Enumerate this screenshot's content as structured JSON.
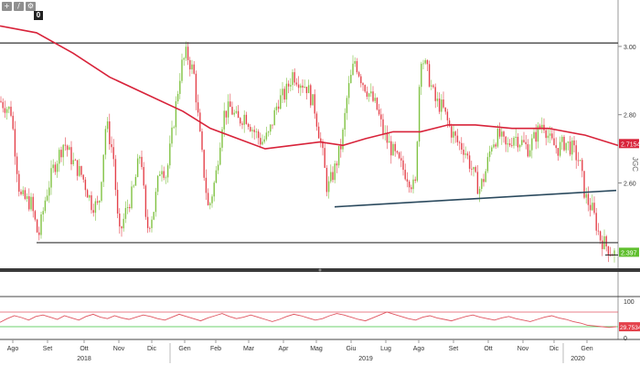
{
  "toolbar": {
    "buttons": [
      {
        "icon": "plus-icon",
        "glyph": "+"
      },
      {
        "icon": "pencil-icon",
        "glyph": "/"
      },
      {
        "icon": "gear-icon",
        "glyph": "⚙"
      }
    ],
    "badge": "0"
  },
  "colors": {
    "up": "#7fc241",
    "down": "#e4414b",
    "ma": "#d8233a",
    "support": "#333333",
    "trend": "#2b4a5e",
    "rsi": "#e05560",
    "rsi_upper": "#e05560",
    "rsi_lower": "#3cc23c",
    "last_price_bg": "#5fbf2d",
    "ma_label_bg": "#d8233a",
    "rsi_label_bg": "#e4414b"
  },
  "chart_data": [
    {
      "type": "candlestick",
      "y_axis_ticks": [
        "3.00",
        "2.80",
        "2.60"
      ],
      "ylim": [
        2.35,
        3.12
      ],
      "y_axis_label": "JGC",
      "x_month_labels": [
        "Ago",
        "Set",
        "Ott",
        "Nov",
        "Dic",
        "Gen",
        "Feb",
        "Mar",
        "Apr",
        "Mag",
        "Giu",
        "Lug",
        "Ago",
        "Set",
        "Ott",
        "Nov",
        "Dic",
        "Gen"
      ],
      "x_year_labels": [
        "2018",
        "2019",
        "2020"
      ],
      "series_path": [
        [
          0,
          2.84
        ],
        [
          12,
          2.81
        ],
        [
          22,
          2.56
        ],
        [
          34,
          2.54
        ],
        [
          42,
          2.44
        ],
        [
          50,
          2.56
        ],
        [
          58,
          2.64
        ],
        [
          70,
          2.72
        ],
        [
          80,
          2.66
        ],
        [
          90,
          2.62
        ],
        [
          100,
          2.54
        ],
        [
          108,
          2.53
        ],
        [
          116,
          2.78
        ],
        [
          124,
          2.68
        ],
        [
          130,
          2.44
        ],
        [
          138,
          2.52
        ],
        [
          146,
          2.58
        ],
        [
          154,
          2.7
        ],
        [
          160,
          2.46
        ],
        [
          168,
          2.52
        ],
        [
          176,
          2.66
        ],
        [
          182,
          2.62
        ],
        [
          190,
          2.78
        ],
        [
          198,
          2.94
        ],
        [
          204,
          2.98
        ],
        [
          212,
          2.92
        ],
        [
          220,
          2.7
        ],
        [
          228,
          2.52
        ],
        [
          236,
          2.62
        ],
        [
          244,
          2.8
        ],
        [
          252,
          2.82
        ],
        [
          260,
          2.78
        ],
        [
          268,
          2.8
        ],
        [
          276,
          2.76
        ],
        [
          286,
          2.72
        ],
        [
          294,
          2.74
        ],
        [
          304,
          2.84
        ],
        [
          312,
          2.86
        ],
        [
          320,
          2.92
        ],
        [
          328,
          2.9
        ],
        [
          336,
          2.88
        ],
        [
          344,
          2.82
        ],
        [
          352,
          2.7
        ],
        [
          358,
          2.58
        ],
        [
          366,
          2.64
        ],
        [
          374,
          2.72
        ],
        [
          380,
          2.86
        ],
        [
          388,
          2.96
        ],
        [
          396,
          2.9
        ],
        [
          404,
          2.86
        ],
        [
          412,
          2.82
        ],
        [
          420,
          2.74
        ],
        [
          428,
          2.7
        ],
        [
          436,
          2.66
        ],
        [
          446,
          2.62
        ],
        [
          454,
          2.58
        ],
        [
          460,
          2.98
        ],
        [
          468,
          2.92
        ],
        [
          476,
          2.84
        ],
        [
          484,
          2.82
        ],
        [
          492,
          2.76
        ],
        [
          500,
          2.72
        ],
        [
          508,
          2.7
        ],
        [
          516,
          2.64
        ],
        [
          524,
          2.58
        ],
        [
          530,
          2.62
        ],
        [
          538,
          2.72
        ],
        [
          546,
          2.74
        ],
        [
          554,
          2.7
        ],
        [
          562,
          2.74
        ],
        [
          570,
          2.72
        ],
        [
          578,
          2.7
        ],
        [
          586,
          2.74
        ],
        [
          594,
          2.78
        ],
        [
          602,
          2.72
        ],
        [
          610,
          2.7
        ],
        [
          618,
          2.72
        ],
        [
          626,
          2.7
        ],
        [
          634,
          2.66
        ],
        [
          640,
          2.56
        ],
        [
          648,
          2.52
        ],
        [
          656,
          2.44
        ],
        [
          662,
          2.42
        ],
        [
          668,
          2.4
        ],
        [
          674,
          2.39
        ]
      ],
      "moving_average": {
        "value_label": "2.7154",
        "path": [
          [
            0,
            3.06
          ],
          [
            40,
            3.04
          ],
          [
            80,
            2.98
          ],
          [
            120,
            2.91
          ],
          [
            160,
            2.86
          ],
          [
            200,
            2.81
          ],
          [
            230,
            2.76
          ],
          [
            260,
            2.73
          ],
          [
            290,
            2.7
          ],
          [
            320,
            2.71
          ],
          [
            350,
            2.72
          ],
          [
            375,
            2.71
          ],
          [
            400,
            2.73
          ],
          [
            430,
            2.75
          ],
          [
            460,
            2.75
          ],
          [
            490,
            2.77
          ],
          [
            520,
            2.77
          ],
          [
            560,
            2.76
          ],
          [
            600,
            2.76
          ],
          [
            640,
            2.74
          ],
          [
            676,
            2.71
          ]
        ]
      },
      "support_line": {
        "value": 2.425
      },
      "resistance_line": {
        "value": 3.01
      },
      "trend_line": {
        "from": {
          "label": "Giu 2019",
          "y": 2.53
        },
        "to": {
          "label": "Gen 2020",
          "y": 2.578
        }
      },
      "last_price": {
        "value": 2.397,
        "label": "2.397"
      }
    },
    {
      "type": "line",
      "indicator": "RSI",
      "y_axis_ticks": [
        "100",
        "0"
      ],
      "ylim": [
        0,
        100
      ],
      "upper_band": 70,
      "lower_band": 30,
      "value_label": "29.7534",
      "values": [
        42,
        52,
        60,
        55,
        48,
        58,
        62,
        56,
        50,
        60,
        54,
        48,
        58,
        64,
        56,
        52,
        60,
        54,
        50,
        56,
        62,
        58,
        52,
        48,
        56,
        64,
        58,
        52,
        46,
        54,
        60,
        66,
        58,
        52,
        56,
        62,
        56,
        50,
        44,
        50,
        58,
        64,
        60,
        54,
        48,
        52,
        60,
        66,
        62,
        56,
        50,
        46,
        54,
        62,
        70,
        64,
        58,
        52,
        48,
        56,
        60,
        54,
        50,
        46,
        52,
        58,
        62,
        56,
        52,
        48,
        54,
        58,
        52,
        48,
        44,
        50,
        56,
        60,
        54,
        50,
        44,
        40,
        34,
        32,
        30,
        28,
        30
      ]
    }
  ]
}
